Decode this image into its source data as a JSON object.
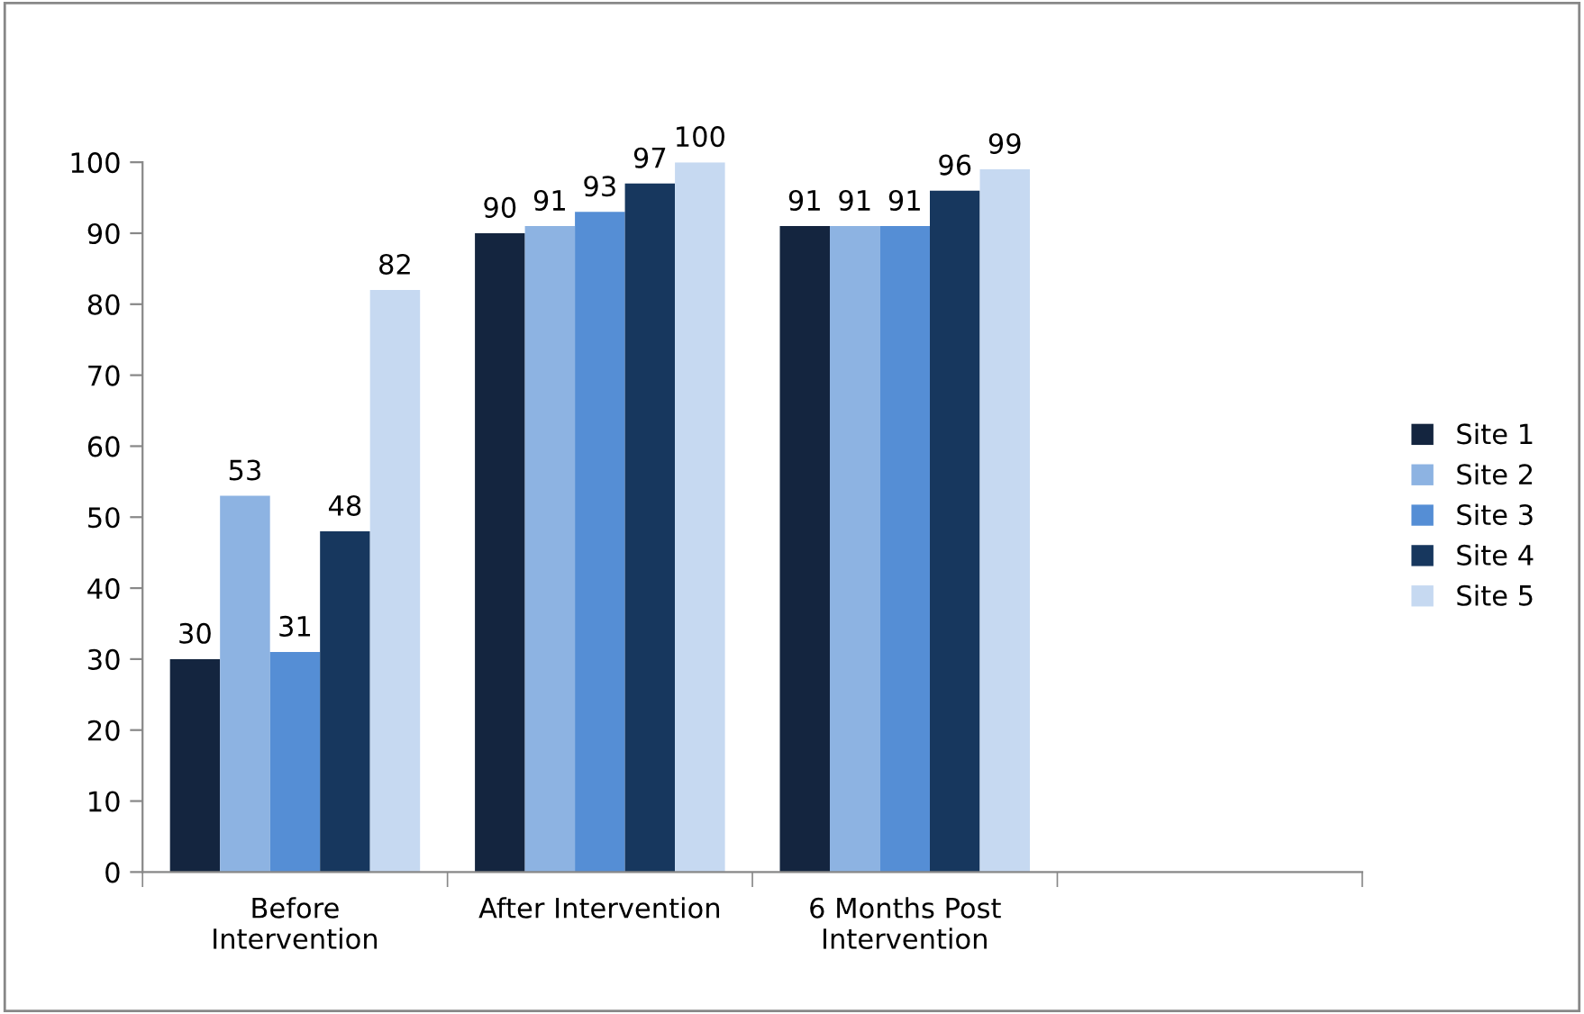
{
  "chart_data": {
    "type": "bar",
    "categories": [
      "Before\nIntervention",
      "After Intervention",
      "6 Months Post\nIntervention",
      null
    ],
    "series": [
      {
        "name": "Site 1",
        "color": "#14253f",
        "values": [
          30,
          90,
          91,
          null
        ]
      },
      {
        "name": "Site 2",
        "color": "#8db3e2",
        "values": [
          53,
          91,
          91,
          null
        ]
      },
      {
        "name": "Site 3",
        "color": "#558ed5",
        "values": [
          31,
          93,
          91,
          null
        ]
      },
      {
        "name": "Site 4",
        "color": "#17375e",
        "values": [
          48,
          97,
          96,
          null
        ]
      },
      {
        "name": "Site 5",
        "color": "#c6d9f1",
        "values": [
          82,
          100,
          99,
          null
        ]
      }
    ],
    "ylim": [
      0,
      100
    ],
    "yticks": [
      0,
      10,
      20,
      30,
      40,
      50,
      60,
      70,
      80,
      90,
      100
    ],
    "grid": false,
    "legend": "right",
    "data_labels": true
  }
}
